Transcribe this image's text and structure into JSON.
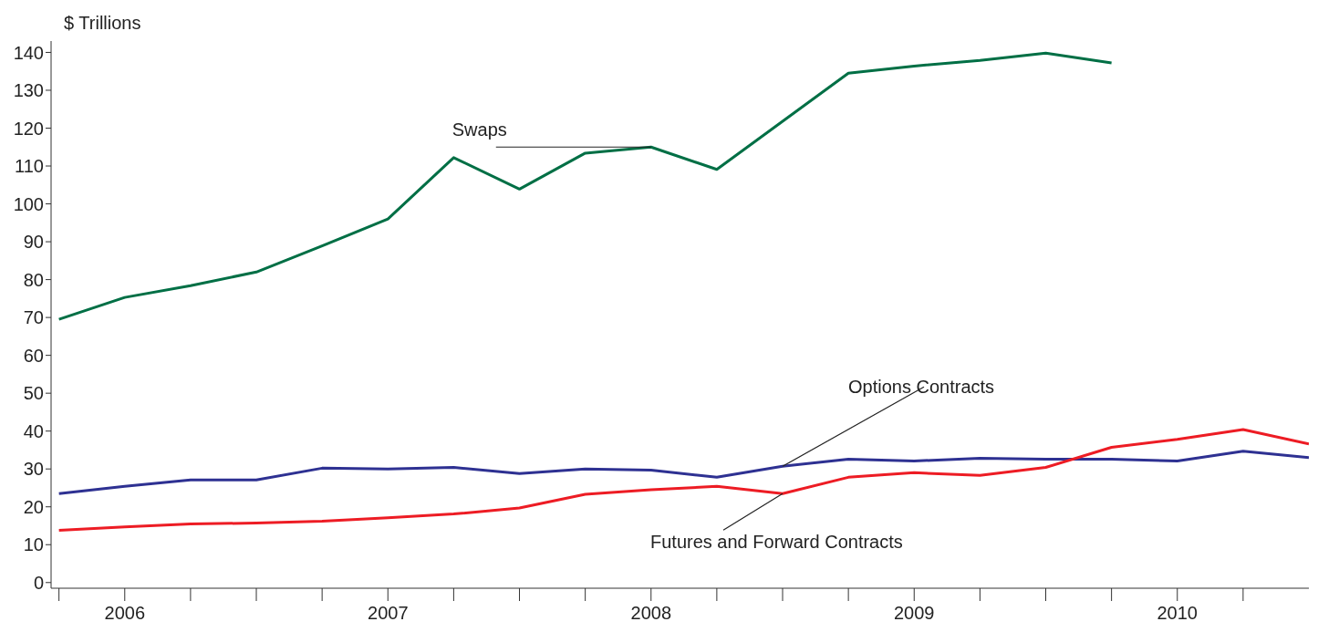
{
  "chart_data": {
    "type": "line",
    "ylabel": "$ Trillions",
    "x": [
      2005.75,
      2006,
      2006.25,
      2006.5,
      2006.75,
      2007,
      2007.25,
      2007.5,
      2007.75,
      2008,
      2008.25,
      2008.5,
      2008.75,
      2009,
      2009.25,
      2009.5,
      2009.75,
      2010,
      2010.25,
      2010.5
    ],
    "series": [
      {
        "name": "Swaps",
        "color": "#006f45",
        "values": [
          69.5,
          75.3,
          78.4,
          82,
          88.9,
          96,
          112.2,
          103.9,
          113.4,
          115,
          109.1,
          121.8,
          134.5,
          136.4,
          137.9,
          139.8,
          137.2,
          null,
          null,
          null
        ]
      },
      {
        "name": "Options Contracts",
        "color": "#2e3192",
        "values": [
          23.5,
          25.4,
          27.1,
          27.1,
          30.2,
          30,
          30.4,
          28.8,
          30,
          29.7,
          27.8,
          30.7,
          32.6,
          32.1,
          32.8,
          32.6,
          32.6,
          32.1,
          34.7,
          33
        ]
      },
      {
        "name": "Futures and Forward Contracts",
        "color": "#ed1c24",
        "values": [
          13.8,
          14.7,
          15.5,
          15.7,
          16.2,
          17.1,
          18.1,
          19.7,
          23.3,
          24.5,
          25.4,
          23.5,
          27.8,
          29,
          28.3,
          30.4,
          35.7,
          37.8,
          40.4,
          36.6
        ]
      }
    ],
    "xlim": [
      2005.72,
      2010.5
    ],
    "xticks": [
      {
        "value": 2005.75,
        "label": null
      },
      {
        "value": 2006,
        "label": "2006"
      },
      {
        "value": 2006.25,
        "label": null
      },
      {
        "value": 2006.5,
        "label": null
      },
      {
        "value": 2006.75,
        "label": null
      },
      {
        "value": 2007,
        "label": "2007"
      },
      {
        "value": 2007.25,
        "label": null
      },
      {
        "value": 2007.5,
        "label": null
      },
      {
        "value": 2007.75,
        "label": null
      },
      {
        "value": 2008,
        "label": "2008"
      },
      {
        "value": 2008.25,
        "label": null
      },
      {
        "value": 2008.5,
        "label": null
      },
      {
        "value": 2008.75,
        "label": null
      },
      {
        "value": 2009,
        "label": "2009"
      },
      {
        "value": 2009.25,
        "label": null
      },
      {
        "value": 2009.5,
        "label": null
      },
      {
        "value": 2009.75,
        "label": null
      },
      {
        "value": 2010,
        "label": "2010"
      },
      {
        "value": 2010.25,
        "label": null
      }
    ],
    "ylim": [
      -1.5,
      143
    ],
    "yticks": [
      0,
      10,
      20,
      30,
      40,
      50,
      60,
      70,
      80,
      90,
      100,
      110,
      120,
      130,
      140
    ],
    "marker": "none",
    "line_style": "solid"
  }
}
